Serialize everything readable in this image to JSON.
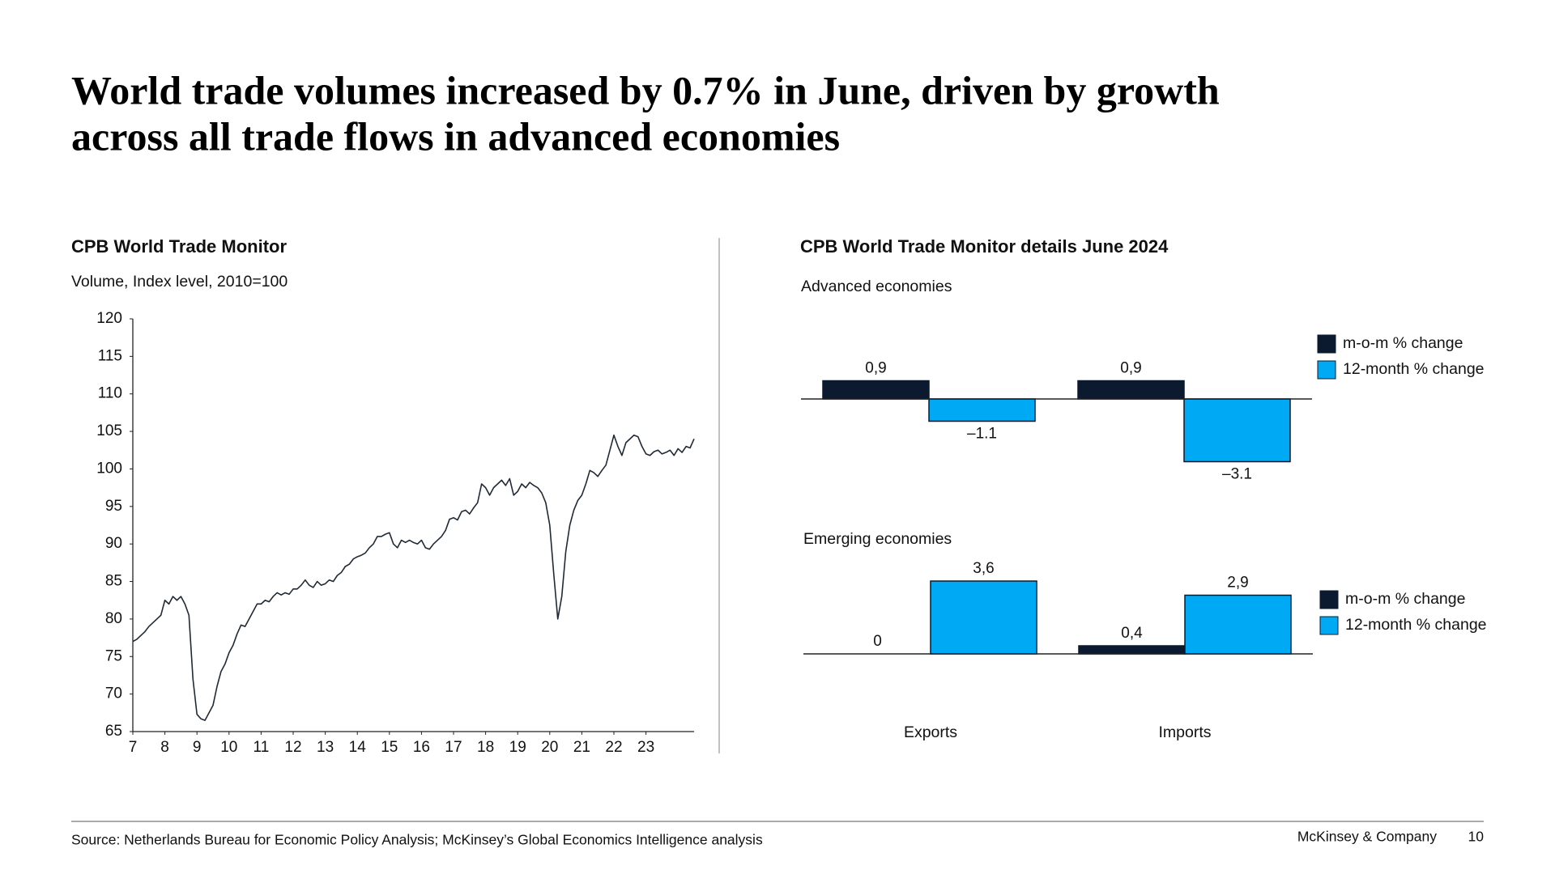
{
  "title": [
    "World trade volumes increased by 0.7% in June, driven by growth",
    "across all trade flows in advanced economies"
  ],
  "details_title": "CPB World Trade Monitor details June 2024",
  "chart_data": [
    {
      "type": "line",
      "title": "CPB World Trade Monitor",
      "subtitle": "Volume, Index level, 2010=100",
      "color": "#1f2a36",
      "xlim": [
        7,
        24.5
      ],
      "xticks": [
        7,
        8,
        9,
        10,
        11,
        12,
        13,
        14,
        15,
        16,
        17,
        18,
        19,
        20,
        21,
        22,
        23
      ],
      "ylim": [
        65,
        120
      ],
      "yticks": [
        65,
        70,
        75,
        80,
        85,
        90,
        95,
        100,
        105,
        110,
        115,
        120
      ],
      "x": [
        7,
        7.125,
        7.25,
        7.375,
        7.5,
        7.625,
        7.75,
        7.875,
        8,
        8.125,
        8.25,
        8.375,
        8.5,
        8.625,
        8.75,
        8.875,
        9,
        9.125,
        9.25,
        9.375,
        9.5,
        9.625,
        9.75,
        9.875,
        10,
        10.125,
        10.25,
        10.375,
        10.5,
        10.625,
        10.75,
        10.875,
        11,
        11.125,
        11.25,
        11.375,
        11.5,
        11.625,
        11.75,
        11.875,
        12,
        12.125,
        12.25,
        12.375,
        12.5,
        12.625,
        12.75,
        12.875,
        13,
        13.125,
        13.25,
        13.375,
        13.5,
        13.625,
        13.75,
        13.875,
        14,
        14.125,
        14.25,
        14.375,
        14.5,
        14.625,
        14.75,
        14.875,
        15,
        15.125,
        15.25,
        15.375,
        15.5,
        15.625,
        15.75,
        15.875,
        16,
        16.125,
        16.25,
        16.375,
        16.5,
        16.625,
        16.75,
        16.875,
        17,
        17.125,
        17.25,
        17.375,
        17.5,
        17.625,
        17.75,
        17.875,
        18,
        18.125,
        18.25,
        18.375,
        18.5,
        18.625,
        18.75,
        18.875,
        19,
        19.125,
        19.25,
        19.375,
        19.5,
        19.625,
        19.75,
        19.875,
        20,
        20.125,
        20.25,
        20.375,
        20.5,
        20.625,
        20.75,
        20.875,
        21,
        21.125,
        21.25,
        21.375,
        21.5,
        21.625,
        21.75,
        21.875,
        22,
        22.125,
        22.25,
        22.375,
        22.5,
        22.625,
        22.75,
        22.875,
        23,
        23.125,
        23.25,
        23.375,
        23.5,
        23.625,
        23.75,
        23.875,
        24,
        24.125,
        24.25,
        24.375,
        24.5
      ],
      "values": [
        77,
        77.3,
        77.8,
        78.3,
        79,
        79.5,
        80,
        80.5,
        82.5,
        82,
        83,
        82.5,
        83,
        82,
        80.5,
        72,
        67.3,
        66.7,
        66.5,
        67.5,
        68.5,
        71,
        73,
        74,
        75.5,
        76.5,
        78,
        79.2,
        79,
        80,
        81,
        82,
        82,
        82.5,
        82.3,
        83,
        83.5,
        83.2,
        83.5,
        83.3,
        84,
        84,
        84.5,
        85.2,
        84.5,
        84.2,
        85,
        84.5,
        84.7,
        85.2,
        85,
        85.8,
        86.2,
        87,
        87.3,
        88,
        88.3,
        88.5,
        88.8,
        89.5,
        90,
        91,
        91,
        91.3,
        91.5,
        90,
        89.5,
        90.5,
        90.2,
        90.5,
        90.2,
        90,
        90.5,
        89.5,
        89.3,
        90,
        90.5,
        91,
        91.8,
        93.3,
        93.5,
        93.2,
        94.3,
        94.5,
        94,
        94.8,
        95.5,
        98,
        97.5,
        96.5,
        97.5,
        98,
        98.5,
        97.8,
        98.7,
        96.5,
        97,
        98,
        97.5,
        98.2,
        97.8,
        97.5,
        96.8,
        95.5,
        92.5,
        86,
        80,
        83,
        89,
        92.5,
        94.5,
        95.8,
        96.5,
        98,
        99.8,
        99.5,
        99,
        99.8,
        100.5,
        102.5,
        104.5,
        103,
        101.8,
        103.5,
        104,
        104.5,
        104.3,
        103,
        102,
        101.8,
        102.3,
        102.5,
        102,
        102.2,
        102.5,
        101.8,
        102.7,
        102.2,
        103,
        102.8,
        104
      ]
    },
    {
      "type": "bar",
      "title": "Advanced economies",
      "series": [
        {
          "name": "m-o-m % change",
          "color": "#0b1a2e",
          "values": [
            0.9,
            0.9
          ],
          "value_labels": [
            "0,9",
            "0,9"
          ]
        },
        {
          "name": "12-month % change",
          "color": "#00a9f4",
          "values": [
            -1.1,
            -3.1
          ],
          "value_labels": [
            "–1.1",
            "–3.1"
          ]
        }
      ]
    },
    {
      "type": "bar",
      "title": "Emerging economies",
      "categories": [
        "Exports",
        "Imports"
      ],
      "series": [
        {
          "name": "m-o-m % change",
          "color": "#0b1a2e",
          "values": [
            0,
            0.4
          ],
          "value_labels": [
            "0",
            "0,4"
          ]
        },
        {
          "name": "12-month % change",
          "color": "#00a9f4",
          "values": [
            3.6,
            2.9
          ],
          "value_labels": [
            "3,6",
            "2,9"
          ]
        }
      ]
    }
  ],
  "footer": {
    "source": "Source: Netherlands Bureau for Economic Policy Analysis; McKinsey’s Global Economics Intelligence analysis",
    "brand": "McKinsey & Company",
    "page": 10
  }
}
